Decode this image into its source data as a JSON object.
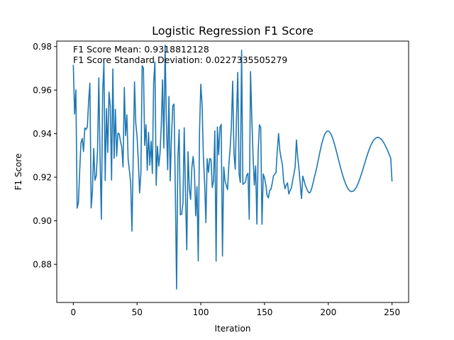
{
  "chart_data": {
    "type": "line",
    "title": "Logistic Regression F1 Score",
    "xlabel": "Iteration",
    "ylabel": "F1 Score",
    "xlim": [
      -13,
      263
    ],
    "ylim": [
      0.8625,
      0.9825
    ],
    "x_ticks": [
      0,
      50,
      100,
      150,
      200,
      250
    ],
    "y_ticks": [
      0.88,
      0.9,
      0.92,
      0.94,
      0.96,
      0.98
    ],
    "x_tick_labels": [
      "0",
      "50",
      "100",
      "150",
      "200",
      "250"
    ],
    "y_tick_labels": [
      "0.88",
      "0.90",
      "0.92",
      "0.94",
      "0.96",
      "0.98"
    ],
    "grid": false,
    "annotations": [
      "F1 Score Mean: 0.9318812128",
      "F1 Score Standard Deviation: 0.0227335505279"
    ],
    "series": [
      {
        "color": "#1f77b4",
        "x_start": 0,
        "x_step": 1,
        "values": [
          0.9716,
          0.949,
          0.9601,
          0.9058,
          0.9083,
          0.9229,
          0.9358,
          0.9378,
          0.9318,
          0.9426,
          0.9419,
          0.9431,
          0.9549,
          0.9632,
          0.9059,
          0.9138,
          0.9332,
          0.9186,
          0.9207,
          0.9323,
          0.9656,
          0.9283,
          0.9007,
          0.9589,
          0.9726,
          0.9185,
          0.9515,
          0.9314,
          0.9591,
          0.9524,
          0.9187,
          0.9697,
          0.9287,
          0.9512,
          0.9297,
          0.9402,
          0.9399,
          0.9364,
          0.9337,
          0.9247,
          0.9612,
          0.9391,
          0.9487,
          0.9282,
          0.9231,
          0.9173,
          0.8952,
          0.9304,
          0.9638,
          0.9448,
          0.9387,
          0.9274,
          0.9128,
          0.9217,
          0.9712,
          0.9701,
          0.9346,
          0.9441,
          0.9232,
          0.9406,
          0.9255,
          0.9365,
          0.9217,
          0.9631,
          0.9729,
          0.9163,
          0.9342,
          0.9251,
          0.9309,
          0.9437,
          0.9647,
          0.9334,
          0.9806,
          0.9463,
          0.9234,
          0.9571,
          0.9183,
          0.9383,
          0.9528,
          0.9536,
          0.9148,
          0.8687,
          0.9286,
          0.9418,
          0.9027,
          0.9031,
          0.9081,
          0.9427,
          0.9116,
          0.8867,
          0.9317,
          0.9148,
          0.9098,
          0.9246,
          0.9295,
          0.9226,
          0.9023,
          0.9157,
          0.8816,
          0.9412,
          0.9627,
          0.9534,
          0.9299,
          0.9172,
          0.8991,
          0.9285,
          0.9222,
          0.9286,
          0.9281,
          0.9153,
          0.9182,
          0.9413,
          0.8815,
          0.9431,
          0.9303,
          0.9428,
          0.9443,
          0.8838,
          0.9247,
          0.9183,
          0.9163,
          0.9143,
          0.9256,
          0.9332,
          0.9436,
          0.9641,
          0.9311,
          0.9236,
          0.9471,
          0.9681,
          0.9216,
          0.9176,
          0.9783,
          0.9167,
          0.9172,
          0.9178,
          0.9209,
          0.9218,
          0.9007,
          0.9685,
          0.9476,
          0.9296,
          0.9164,
          0.9252,
          0.8985,
          0.9317,
          0.9441,
          0.9427,
          0.8984,
          0.9215,
          0.9196,
          0.9166,
          0.9116,
          0.9105,
          0.9139,
          0.9144,
          0.9172,
          0.9206,
          0.9213,
          0.9222,
          0.9325,
          0.9401,
          0.9322,
          0.9287,
          0.9258,
          0.9181,
          0.9147,
          0.9163,
          0.9174,
          0.9123,
          0.9138,
          0.9151,
          0.9183,
          0.9214,
          0.9247,
          0.9371,
          0.9292,
          0.9238,
          0.9168,
          0.9102,
          0.9205,
          0.9184,
          0.9162,
          0.9148,
          0.9135,
          0.9128,
          0.9132,
          0.9149,
          0.9172,
          0.9198,
          0.9221,
          0.9246,
          0.9275,
          0.9304,
          0.9331,
          0.9356,
          0.9377,
          0.9394,
          0.9405,
          0.9411,
          0.9412,
          0.9408,
          0.9399,
          0.9386,
          0.9369,
          0.9349,
          0.9327,
          0.9304,
          0.9281,
          0.9258,
          0.9236,
          0.9215,
          0.9196,
          0.9179,
          0.9164,
          0.9152,
          0.9143,
          0.9137,
          0.9134,
          0.9135,
          0.9138,
          0.9145,
          0.9154,
          0.9166,
          0.9181,
          0.9197,
          0.9215,
          0.9234,
          0.9253,
          0.9272,
          0.9291,
          0.9309,
          0.9326,
          0.9341,
          0.9354,
          0.9365,
          0.9373,
          0.9379,
          0.9382,
          0.9383,
          0.9381,
          0.9377,
          0.9371,
          0.9363,
          0.9353,
          0.9342,
          0.9329,
          0.9316,
          0.9302,
          0.9288,
          0.918
        ]
      }
    ]
  }
}
